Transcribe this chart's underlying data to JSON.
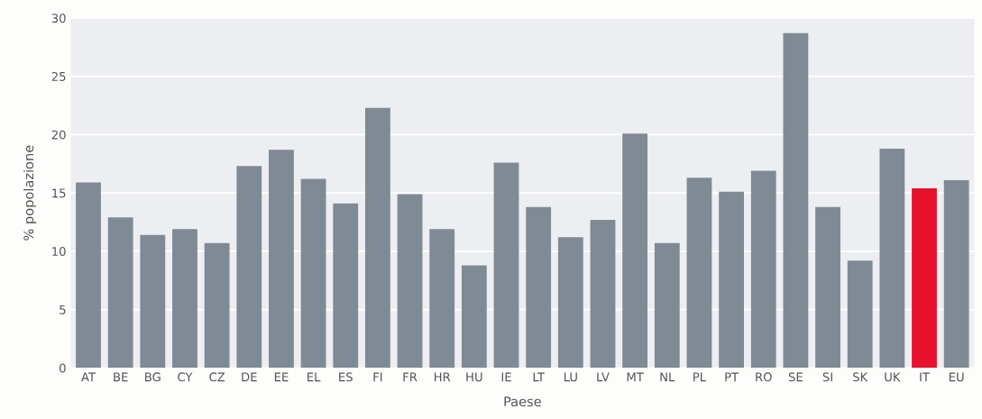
{
  "chart_data": {
    "type": "bar",
    "xlabel": "Paese",
    "ylabel": "% popolazione",
    "categories": [
      "AT",
      "BE",
      "BG",
      "CY",
      "CZ",
      "DE",
      "EE",
      "EL",
      "ES",
      "FI",
      "FR",
      "HR",
      "HU",
      "IE",
      "LT",
      "LU",
      "LV",
      "MT",
      "NL",
      "PL",
      "PT",
      "RO",
      "SE",
      "SI",
      "SK",
      "UK",
      "IT",
      "EU"
    ],
    "values": [
      15.9,
      12.9,
      11.4,
      11.9,
      10.7,
      17.3,
      18.7,
      16.2,
      14.1,
      22.3,
      14.9,
      11.9,
      8.8,
      17.6,
      13.8,
      11.2,
      12.7,
      20.1,
      10.7,
      16.3,
      15.1,
      16.9,
      28.7,
      13.8,
      9.2,
      18.8,
      15.4,
      16.1
    ],
    "colors": [
      "#7f8a94",
      "#7f8a94",
      "#7f8a94",
      "#7f8a94",
      "#7f8a94",
      "#7f8a94",
      "#7f8a94",
      "#7f8a94",
      "#7f8a94",
      "#7f8a94",
      "#7f8a94",
      "#7f8a94",
      "#7f8a94",
      "#7f8a94",
      "#7f8a94",
      "#7f8a94",
      "#7f8a94",
      "#7f8a94",
      "#7f8a94",
      "#7f8a94",
      "#7f8a94",
      "#7f8a94",
      "#7f8a94",
      "#7f8a94",
      "#7f8a94",
      "#7f8a94",
      "#e8112d",
      "#7f8a94"
    ],
    "ylim": [
      0,
      30
    ],
    "yticks": [
      0,
      5,
      10,
      15,
      20,
      25,
      30
    ],
    "grid": "y"
  }
}
